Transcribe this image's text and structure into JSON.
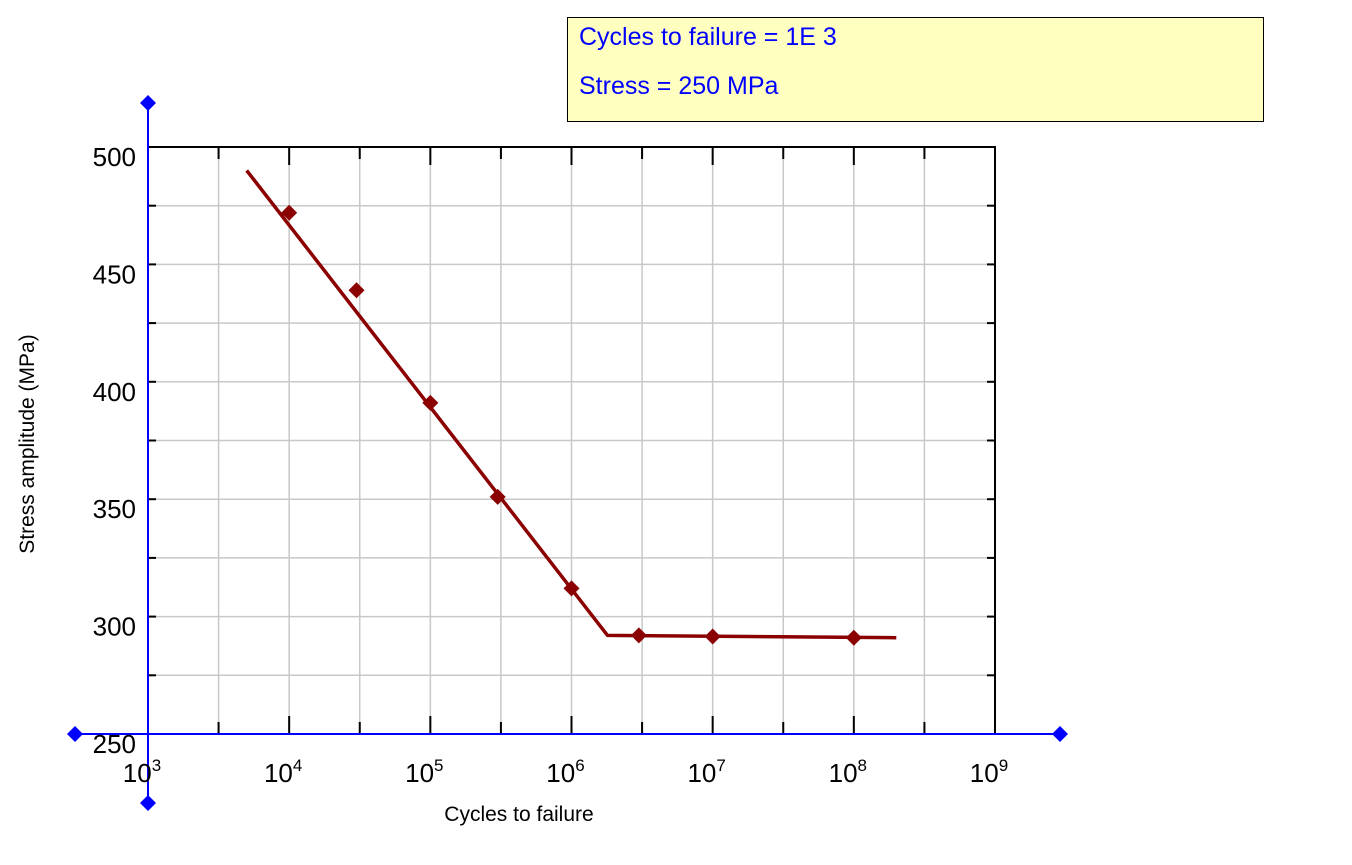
{
  "readout": {
    "line1": "Cycles to failure = 1E 3",
    "line2": "Stress = 250 MPa"
  },
  "colors": {
    "series": "#8b0000",
    "axis_cursor": "#0000ff",
    "grid": "#c8c8c8",
    "readout_bg": "#ffffc0",
    "readout_text": "#0000ff"
  },
  "chart_data": {
    "type": "line",
    "title": "",
    "xlabel": "Cycles to failure",
    "ylabel": "Stress amplitude (MPa)",
    "x_scale": "log",
    "xlim": [
      1000,
      1000000000
    ],
    "ylim": [
      250,
      500
    ],
    "x_ticks": [
      {
        "base": "10",
        "exp": "3",
        "value": 1000
      },
      {
        "base": "10",
        "exp": "4",
        "value": 10000
      },
      {
        "base": "10",
        "exp": "5",
        "value": 100000
      },
      {
        "base": "10",
        "exp": "6",
        "value": 1000000
      },
      {
        "base": "10",
        "exp": "7",
        "value": 10000000
      },
      {
        "base": "10",
        "exp": "8",
        "value": 100000000
      },
      {
        "base": "10",
        "exp": "9",
        "value": 1000000000
      }
    ],
    "y_ticks": [
      {
        "label": "250",
        "value": 250
      },
      {
        "label": "300",
        "value": 300
      },
      {
        "label": "350",
        "value": 350
      },
      {
        "label": "400",
        "value": 400
      },
      {
        "label": "450",
        "value": 450
      },
      {
        "label": "500",
        "value": 500
      }
    ],
    "grid": true,
    "series": [
      {
        "kind": "markers",
        "marker": "diamond",
        "x": [
          10000,
          30000,
          100000,
          300000,
          1000000,
          3000000,
          10000000,
          100000000
        ],
        "y": [
          472,
          439,
          391,
          351,
          312,
          292,
          291.5,
          291
        ]
      },
      {
        "kind": "fit-line",
        "x": [
          5000,
          1800000,
          200000000
        ],
        "y": [
          490,
          292,
          291
        ]
      }
    ]
  }
}
